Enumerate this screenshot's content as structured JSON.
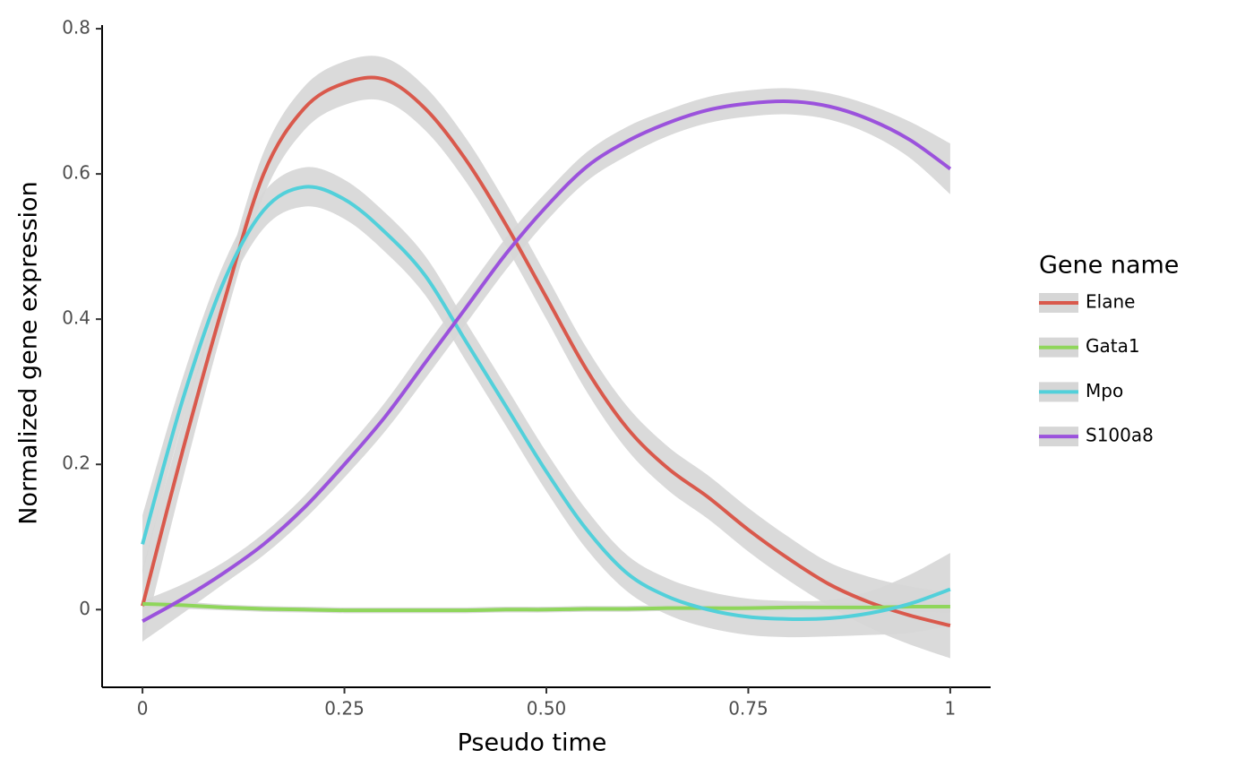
{
  "chart_data": {
    "type": "line",
    "x_label": "Pseudo time",
    "y_label": "Normalized gene expression",
    "legend_title": "Gene name",
    "legend": "right",
    "band_color": "#d6d6d6",
    "x": [
      0,
      0.05,
      0.1,
      0.15,
      0.2,
      0.25,
      0.3,
      0.35,
      0.4,
      0.45,
      0.5,
      0.55,
      0.6,
      0.65,
      0.7,
      0.75,
      0.8,
      0.85,
      0.9,
      0.95,
      1
    ],
    "xlim": [
      -0.05,
      1.05
    ],
    "ylim": [
      -0.107,
      0.805
    ],
    "xticks": [
      0,
      0.25,
      {
        "value": 0.5,
        "label": "0.50"
      },
      0.75,
      1
    ],
    "yticks": [
      0,
      0.2,
      0.4,
      0.6,
      0.8
    ],
    "series": [
      {
        "name": "Elane",
        "color": "#d9594c",
        "values": [
          0.005,
          0.22,
          0.42,
          0.6,
          0.69,
          0.725,
          0.73,
          0.69,
          0.62,
          0.53,
          0.43,
          0.33,
          0.25,
          0.195,
          0.155,
          0.11,
          0.07,
          0.035,
          0.01,
          -0.008,
          -0.022
        ],
        "se": [
          0.05,
          0.04,
          0.03,
          0.03,
          0.03,
          0.03,
          0.03,
          0.03,
          0.03,
          0.03,
          0.03,
          0.03,
          0.03,
          0.03,
          0.03,
          0.03,
          0.03,
          0.03,
          0.035,
          0.04,
          0.045
        ]
      },
      {
        "name": "Gata1",
        "color": "#8fd65b",
        "values": [
          0.008,
          0.006,
          0.003,
          0.001,
          0,
          -0.001,
          -0.001,
          -0.001,
          -0.001,
          0,
          0,
          0.001,
          0.001,
          0.002,
          0.002,
          0.002,
          0.003,
          0.003,
          0.003,
          0.004,
          0.004
        ],
        "se": [
          0.006,
          0.005,
          0.004,
          0.004,
          0.004,
          0.004,
          0.004,
          0.004,
          0.004,
          0.004,
          0.004,
          0.004,
          0.004,
          0.004,
          0.004,
          0.004,
          0.005,
          0.005,
          0.006,
          0.007,
          0.008
        ]
      },
      {
        "name": "Mpo",
        "color": "#52d0da",
        "values": [
          0.09,
          0.29,
          0.45,
          0.55,
          0.582,
          0.565,
          0.52,
          0.46,
          0.37,
          0.28,
          0.19,
          0.11,
          0.05,
          0.018,
          0,
          -0.01,
          -0.013,
          -0.012,
          -0.005,
          0.008,
          0.028
        ],
        "se": [
          0.04,
          0.03,
          0.025,
          0.025,
          0.027,
          0.027,
          0.027,
          0.027,
          0.027,
          0.027,
          0.027,
          0.027,
          0.025,
          0.025,
          0.025,
          0.025,
          0.025,
          0.025,
          0.03,
          0.04,
          0.05
        ]
      },
      {
        "name": "S100a8",
        "color": "#9b52dc",
        "values": [
          -0.016,
          0.015,
          0.05,
          0.09,
          0.14,
          0.2,
          0.265,
          0.34,
          0.415,
          0.49,
          0.555,
          0.61,
          0.645,
          0.67,
          0.688,
          0.697,
          0.7,
          0.693,
          0.675,
          0.647,
          0.607
        ],
        "se": [
          0.028,
          0.02,
          0.015,
          0.015,
          0.016,
          0.018,
          0.02,
          0.022,
          0.022,
          0.022,
          0.02,
          0.02,
          0.02,
          0.018,
          0.018,
          0.018,
          0.018,
          0.018,
          0.02,
          0.025,
          0.035
        ]
      }
    ]
  }
}
